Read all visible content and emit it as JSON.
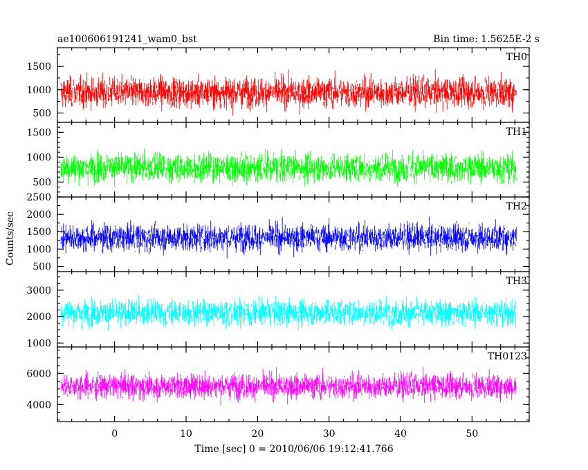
{
  "header": {
    "title": "ae100606191241_wam0_bst",
    "bin_time": "Bin time: 1.5625E-2 s"
  },
  "chart_data": {
    "type": "line",
    "xlabel": "Time [sec] 0 = 2010/06/06 19:12:41.766",
    "ylabel": "Counts/sec",
    "xlim": [
      -8,
      58
    ],
    "xticks": [
      0,
      10,
      20,
      30,
      40,
      50
    ],
    "x_range": [
      -7.5,
      56.2
    ],
    "grid": false,
    "panels": [
      {
        "name": "TH0",
        "color": "#ff0000",
        "ylim": [
          300,
          1900
        ],
        "yticks": [
          500,
          1000,
          1500
        ],
        "baseline": 940,
        "spread": 400,
        "min_floor": 300,
        "max_cap": 1900
      },
      {
        "name": "TH1",
        "color": "#00ff00",
        "ylim": [
          200,
          1700
        ],
        "yticks": [
          500,
          1000,
          1500
        ],
        "baseline": 790,
        "spread": 360,
        "min_floor": 250,
        "max_cap": 1700
      },
      {
        "name": "TH2",
        "color": "#0000ff",
        "ylim": [
          350,
          2500
        ],
        "yticks": [
          500,
          1000,
          1500,
          2000,
          2500
        ],
        "baseline": 1330,
        "spread": 480,
        "min_floor": 430,
        "max_cap": 2500
      },
      {
        "name": "TH3",
        "color": "#00ffff",
        "ylim": [
          850,
          3700
        ],
        "yticks": [
          1000,
          2000,
          3000
        ],
        "baseline": 2150,
        "spread": 620,
        "min_floor": 900,
        "max_cap": 3650
      },
      {
        "name": "TH0123",
        "color": "#ff00ff",
        "ylim": [
          2900,
          7700
        ],
        "yticks": [
          4000,
          6000
        ],
        "baseline": 5180,
        "spread": 1000,
        "min_floor": 2950,
        "max_cap": 7650
      }
    ]
  }
}
